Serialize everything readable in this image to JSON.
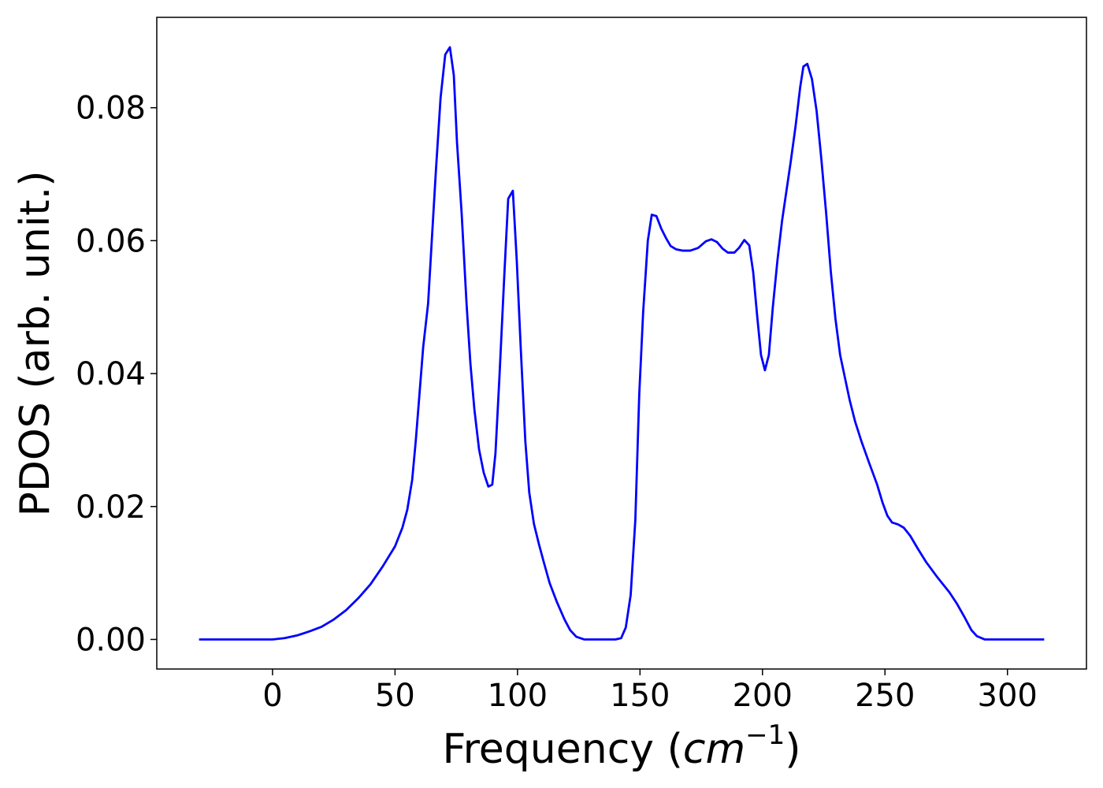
{
  "chart_data": {
    "type": "line",
    "xlabel": [
      "Frequency (",
      "cm",
      "−1",
      ")"
    ],
    "ylabel": "PDOS (arb. unit.)",
    "xlim": [
      -47.25,
      332.25
    ],
    "ylim": [
      -0.00445,
      0.0936
    ],
    "xticks": [
      0,
      50,
      100,
      150,
      200,
      250,
      300
    ],
    "yticks": [
      {
        "value": 0,
        "label": "0.00"
      },
      {
        "value": 0.02,
        "label": "0.02"
      },
      {
        "value": 0.04,
        "label": "0.04"
      },
      {
        "value": 0.06,
        "label": "0.06"
      },
      {
        "value": 0.08,
        "label": "0.08"
      }
    ],
    "series": [
      {
        "color": "#0000ff",
        "x": [
          -30,
          -20,
          -10,
          0,
          5,
          10,
          15,
          20,
          25,
          30,
          35,
          40,
          45,
          50,
          53,
          55,
          57,
          58.5,
          60,
          61.5,
          63.5,
          65.1,
          66.7,
          68.6,
          70.5,
          72.4,
          74.0,
          75.3,
          77.2,
          79.2,
          80.8,
          82.4,
          84.3,
          86.2,
          88.1,
          89.7,
          91.0,
          92.6,
          94.6,
          96.2,
          98.1,
          99.7,
          101.3,
          103.2,
          104.8,
          106.7,
          108.7,
          110.6,
          113.1,
          116.0,
          119.2,
          121.5,
          124,
          127.2,
          140,
          142.3,
          144.2,
          146.2,
          148.1,
          149.7,
          151.3,
          153.2,
          154.8,
          156.7,
          158.7,
          160.6,
          162.5,
          164.7,
          167.3,
          170.5,
          173.7,
          176.9,
          179.2,
          181.4,
          183.7,
          185.9,
          188.5,
          190.4,
          192.6,
          194.6,
          196.2,
          197.8,
          199.4,
          201.0,
          202.6,
          204.2,
          206.1,
          208.0,
          211.5,
          213.5,
          215.4,
          216.7,
          218.3,
          220.2,
          222.1,
          224.0,
          226.0,
          227.9,
          229.8,
          231.7,
          233.7,
          235.6,
          237.8,
          240.4,
          243.6,
          246.8,
          249.0,
          251.0,
          252.9,
          255.4,
          257.7,
          260.3,
          263.5,
          266.7,
          271.5,
          276.3,
          279.5,
          282.7,
          285.3,
          287.5,
          290.7,
          315
        ],
        "values": [
          0,
          0,
          0,
          0,
          0.0002,
          0.0006,
          0.0012,
          0.0019,
          0.003,
          0.0044,
          0.0062,
          0.0083,
          0.011,
          0.014,
          0.0168,
          0.0195,
          0.024,
          0.03,
          0.037,
          0.044,
          0.0505,
          0.0606,
          0.0706,
          0.0815,
          0.088,
          0.0891,
          0.0849,
          0.0748,
          0.0641,
          0.0505,
          0.0414,
          0.0346,
          0.0286,
          0.0251,
          0.023,
          0.0233,
          0.028,
          0.0393,
          0.0547,
          0.0663,
          0.0675,
          0.057,
          0.044,
          0.0298,
          0.0221,
          0.0174,
          0.0144,
          0.0118,
          0.0085,
          0.0057,
          0.003,
          0.0014,
          0.0004,
          0,
          0,
          0.0002,
          0.0018,
          0.0067,
          0.018,
          0.0369,
          0.0493,
          0.06,
          0.0639,
          0.0637,
          0.0618,
          0.0604,
          0.0592,
          0.0587,
          0.0585,
          0.0585,
          0.0589,
          0.0599,
          0.0602,
          0.0598,
          0.0588,
          0.0582,
          0.0582,
          0.0589,
          0.0601,
          0.0593,
          0.0553,
          0.0488,
          0.0428,
          0.0405,
          0.0428,
          0.0499,
          0.057,
          0.063,
          0.0718,
          0.0772,
          0.0831,
          0.0862,
          0.0866,
          0.0843,
          0.0795,
          0.0724,
          0.0641,
          0.0553,
          0.0482,
          0.0428,
          0.0393,
          0.036,
          0.0328,
          0.0298,
          0.0265,
          0.0233,
          0.0206,
          0.0186,
          0.0176,
          0.0173,
          0.0168,
          0.0156,
          0.0136,
          0.0117,
          0.0093,
          0.0071,
          0.0053,
          0.0032,
          0.0014,
          0.0005,
          0,
          0
        ]
      }
    ]
  }
}
